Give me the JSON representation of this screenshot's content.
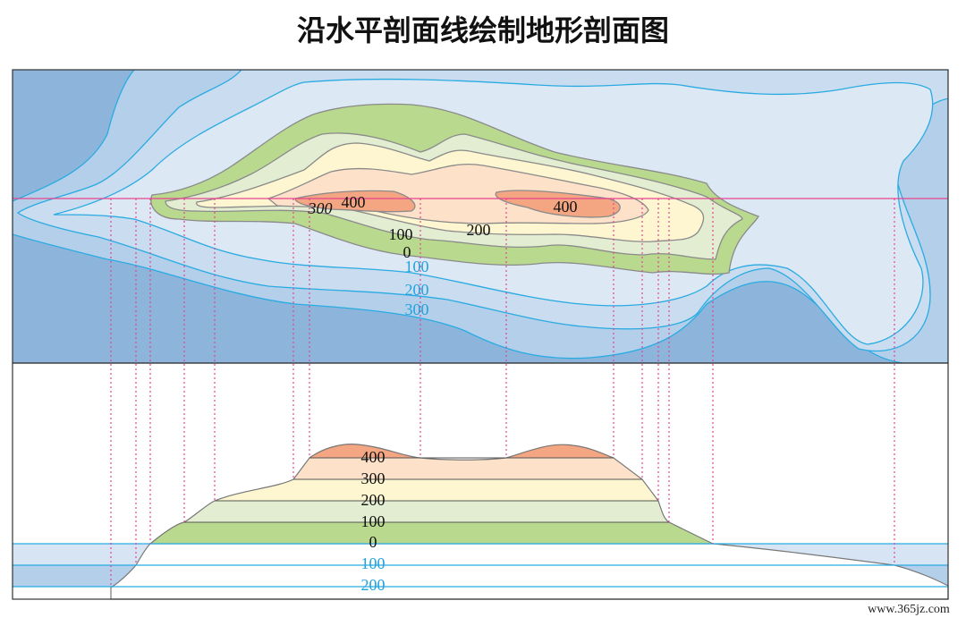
{
  "title": "沿水平剖面线绘制地形剖面图",
  "map": {
    "contour_labels": [
      "300",
      "400",
      "400",
      "100",
      "200",
      "0",
      "100",
      "200",
      "300"
    ]
  },
  "profile": {
    "level_labels": [
      "400",
      "300",
      "200",
      "100",
      "0",
      "100",
      "200"
    ]
  },
  "watermark": "www.365jz.com"
}
